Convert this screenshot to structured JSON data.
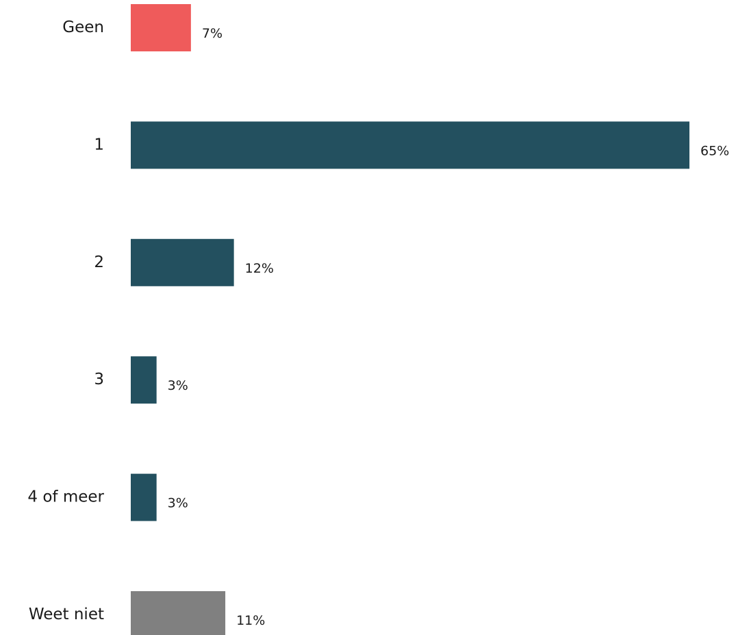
{
  "chart_data": {
    "type": "bar",
    "orientation": "horizontal",
    "categories": [
      "Geen",
      "1",
      "2",
      "3",
      "4 of meer",
      "Weet niet"
    ],
    "values": [
      7,
      65,
      12,
      3,
      3,
      11
    ],
    "value_labels": [
      "7%",
      "65%",
      "12%",
      "3%",
      "3%",
      "11%"
    ],
    "unit": "%",
    "colors": [
      "#ef5b5b",
      "#23505f",
      "#23505f",
      "#23505f",
      "#23505f",
      "#808080"
    ],
    "xlim": [
      0,
      65
    ],
    "grid": false,
    "legend": "none",
    "xlabel": "",
    "ylabel": ""
  }
}
